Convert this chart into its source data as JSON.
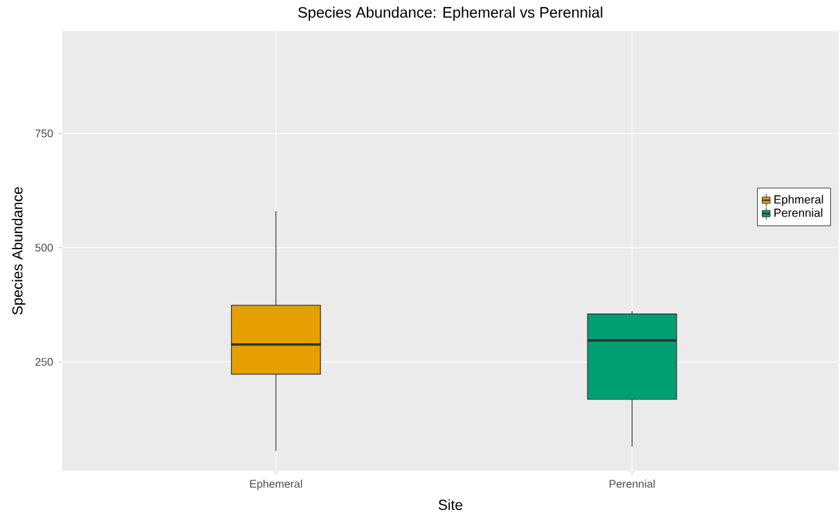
{
  "chart_data": {
    "type": "box",
    "title": "Species Abundance: Ephemeral vs Perennial",
    "xlabel": "Site",
    "ylabel": "Species Abundance",
    "categories": [
      "Ephemeral",
      "Perennial"
    ],
    "series": [
      {
        "name": "Ephmeral",
        "color": "#e69f00",
        "boxes": [
          {
            "low": 55,
            "q1": 223,
            "median": 288,
            "q3": 374,
            "high": 580
          },
          null
        ]
      },
      {
        "name": "Perennial",
        "color": "#009e73",
        "boxes": [
          null,
          {
            "low": 65,
            "q1": 168,
            "median": 297,
            "q3": 355,
            "high": 361
          }
        ]
      }
    ],
    "ylim": [
      12,
      974
    ],
    "yticks": [
      250,
      500,
      750
    ],
    "grid": true,
    "legend": "right"
  }
}
